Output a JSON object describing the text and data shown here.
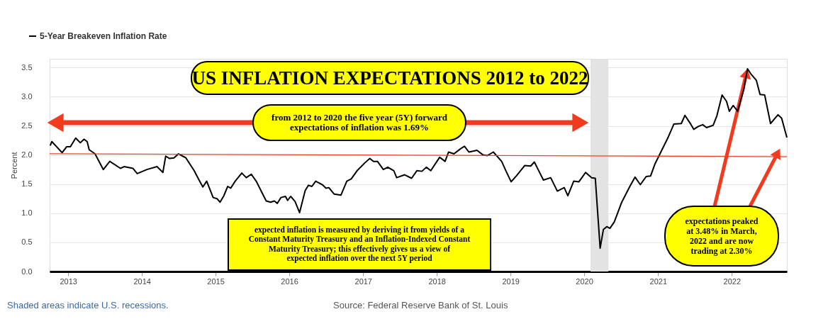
{
  "chart_data": {
    "type": "line",
    "title": "US INFLATION EXPECTATIONS 2012 to 2022",
    "ylabel": "Percent",
    "xlim": [
      "2012-10-01",
      "2022-10-01"
    ],
    "ylim": [
      0,
      3.65
    ],
    "xticks": [
      {
        "value": "2013-01-01",
        "label": "2013"
      },
      {
        "value": "2014-01-01",
        "label": "2014"
      },
      {
        "value": "2015-01-01",
        "label": "2015"
      },
      {
        "value": "2016-01-01",
        "label": "2016"
      },
      {
        "value": "2017-01-01",
        "label": "2017"
      },
      {
        "value": "2018-01-01",
        "label": "2018"
      },
      {
        "value": "2019-01-01",
        "label": "2019"
      },
      {
        "value": "2020-01-01",
        "label": "2020"
      },
      {
        "value": "2021-01-01",
        "label": "2021"
      },
      {
        "value": "2022-01-01",
        "label": "2022"
      }
    ],
    "yticks": [
      {
        "value": 0,
        "label": "0.0"
      },
      0.5,
      {
        "value": 1,
        "label": "1.0"
      },
      1.5,
      {
        "value": 2,
        "label": "2.0"
      },
      2.5,
      {
        "value": 3,
        "label": "3.0"
      },
      3.5
    ],
    "grid": "y",
    "legend": "top left",
    "series": [
      {
        "name": "5-Year Breakeven Inflation Rate",
        "color": "#000000",
        "x": [
          "2012-10-04",
          "2012-10-12",
          "2012-12-02",
          "2012-12-24",
          "2013-01-12",
          "2013-02-07",
          "2013-03-02",
          "2013-03-20",
          "2013-04-05",
          "2013-04-15",
          "2013-05-14",
          "2013-06-24",
          "2013-07-26",
          "2013-09-17",
          "2013-10-05",
          "2013-11-18",
          "2013-12-09",
          "2014-01-26",
          "2014-03-17",
          "2014-04-15",
          "2014-04-29",
          "2014-05-18",
          "2014-06-09",
          "2014-07-01",
          "2014-08-07",
          "2014-09-17",
          "2014-10-08",
          "2014-10-30",
          "2014-11-18",
          "2014-12-20",
          "2015-01-08",
          "2015-01-23",
          "2015-02-11",
          "2015-03-02",
          "2015-03-17",
          "2015-04-08",
          "2015-05-11",
          "2015-06-02",
          "2015-06-27",
          "2015-07-23",
          "2015-08-18",
          "2015-09-09",
          "2015-10-01",
          "2015-10-19",
          "2015-11-03",
          "2015-11-21",
          "2015-12-13",
          "2015-12-24",
          "2016-01-08",
          "2016-01-30",
          "2016-02-21",
          "2016-03-20",
          "2016-04-05",
          "2016-04-22",
          "2016-05-11",
          "2016-06-13",
          "2016-07-01",
          "2016-07-15",
          "2016-08-10",
          "2016-09-13",
          "2016-10-12",
          "2016-11-03",
          "2016-12-02",
          "2017-01-08",
          "2017-02-03",
          "2017-02-21",
          "2017-03-13",
          "2017-04-11",
          "2017-05-03",
          "2017-06-02",
          "2017-06-16",
          "2017-07-26",
          "2017-08-29",
          "2017-09-24",
          "2017-10-19",
          "2017-11-10",
          "2017-12-02",
          "2018-01-15",
          "2018-02-11",
          "2018-02-28",
          "2018-03-27",
          "2018-04-26",
          "2018-05-18",
          "2018-06-09",
          "2018-07-19",
          "2018-08-18",
          "2018-09-09",
          "2018-10-08",
          "2018-11-18",
          "2018-12-09",
          "2019-01-04",
          "2019-01-30",
          "2019-03-13",
          "2019-04-11",
          "2019-04-29",
          "2019-06-13",
          "2019-07-19",
          "2019-08-21",
          "2019-09-24",
          "2019-10-12",
          "2019-11-10",
          "2019-12-06",
          "2020-01-08",
          "2020-02-07",
          "2020-02-25",
          "2020-03-20",
          "2020-04-05",
          "2020-04-22",
          "2020-05-07",
          "2020-05-29",
          "2020-07-05",
          "2020-08-14",
          "2020-09-09",
          "2020-10-05",
          "2020-11-03",
          "2020-11-25",
          "2020-12-17",
          "2021-01-19",
          "2021-02-18",
          "2021-03-20",
          "2021-04-26",
          "2021-05-14",
          "2021-06-06",
          "2021-06-27",
          "2021-07-19",
          "2021-08-10",
          "2021-08-29",
          "2021-10-01",
          "2021-10-19",
          "2021-11-14",
          "2021-12-06",
          "2021-12-20",
          "2022-01-08",
          "2022-01-30",
          "2022-03-02",
          "2022-03-20",
          "2022-04-08",
          "2022-05-03",
          "2022-05-21",
          "2022-06-13",
          "2022-07-12",
          "2022-08-18",
          "2022-09-05",
          "2022-10-01"
        ],
        "values": [
          2.16,
          2.23,
          2.04,
          2.14,
          2.14,
          2.29,
          2.21,
          2.27,
          2.23,
          2.09,
          2.02,
          1.75,
          1.89,
          1.77,
          1.8,
          1.77,
          1.68,
          1.75,
          1.8,
          1.7,
          1.98,
          1.94,
          1.95,
          2.02,
          1.95,
          1.73,
          1.59,
          1.45,
          1.55,
          1.27,
          1.25,
          1.19,
          1.3,
          1.46,
          1.43,
          1.55,
          1.69,
          1.61,
          1.67,
          1.54,
          1.36,
          1.21,
          1.19,
          1.21,
          1.17,
          1.27,
          1.29,
          1.22,
          1.29,
          1.2,
          1.01,
          1.39,
          1.48,
          1.46,
          1.55,
          1.49,
          1.43,
          1.44,
          1.33,
          1.31,
          1.55,
          1.59,
          1.73,
          1.86,
          1.94,
          1.89,
          1.89,
          1.75,
          1.79,
          1.73,
          1.61,
          1.66,
          1.6,
          1.73,
          1.72,
          1.79,
          1.73,
          1.96,
          1.89,
          2.05,
          2.02,
          2.1,
          2.15,
          2.05,
          2.08,
          2.0,
          1.99,
          2.05,
          1.89,
          1.73,
          1.54,
          1.64,
          1.82,
          1.81,
          1.88,
          1.57,
          1.61,
          1.38,
          1.44,
          1.3,
          1.55,
          1.54,
          1.7,
          1.61,
          1.6,
          0.4,
          0.72,
          0.77,
          0.74,
          0.85,
          1.19,
          1.46,
          1.62,
          1.49,
          1.63,
          1.64,
          1.85,
          2.08,
          2.29,
          2.53,
          2.54,
          2.68,
          2.56,
          2.44,
          2.49,
          2.52,
          2.47,
          2.51,
          2.67,
          3.03,
          2.92,
          2.75,
          2.85,
          2.75,
          3.13,
          3.48,
          3.38,
          3.28,
          3.04,
          3.03,
          2.54,
          2.69,
          2.63,
          2.3
        ]
      },
      {
        "type": "line",
        "color": "#e8412c",
        "x": [
          "2012-10-01",
          "2022-10-01"
        ],
        "values": [
          2.02,
          1.97
        ]
      }
    ],
    "bands": [
      {
        "axis": "x",
        "from": "2020-02-01",
        "to": "2020-04-30",
        "color": "#e3e3e3"
      }
    ],
    "annotations": [
      "from 2012 to 2020 the five year (5Y) forward expectations of inflation was 1.69%",
      "expected inflation is measured by deriving it from yields of a Constant Maturity Treasury and an Inflation-Indexed Constant Maturity Treasury; this effectively gives us a view of expected inflation over the next 5Y period",
      {
        "text": "expectations peaked at 3.48% in March, 2022 and are now trading at 2.30%",
        "x": "2022-03-20",
        "y": 3.48
      },
      "Shaded areas indicate U.S. recessions.",
      "Source: Federal Reserve Bank of St. Louis"
    ]
  }
}
